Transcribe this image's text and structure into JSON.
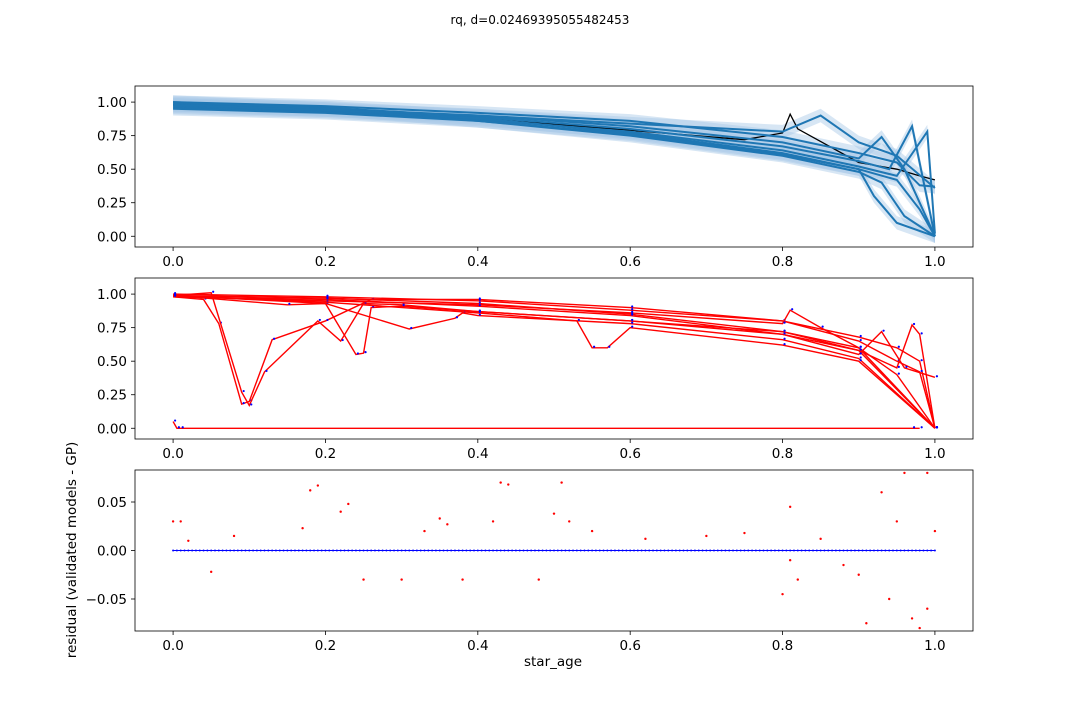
{
  "figure": {
    "suptitle": "rq, d=0.02469395055482453"
  },
  "chart_data": [
    {
      "type": "line",
      "panel": "top",
      "description_of_marks": "validation models (black) with GP predictions (blue) and shaded uncertainty bands",
      "xlim": [
        -0.05,
        1.05
      ],
      "ylim": [
        -0.08,
        1.12
      ],
      "xticks": [
        0.0,
        0.2,
        0.4,
        0.6,
        0.8,
        1.0
      ],
      "xtick_labels": [
        "0.0",
        "0.2",
        "0.4",
        "0.6",
        "0.8",
        "1.0"
      ],
      "yticks": [
        0.0,
        0.25,
        0.5,
        0.75,
        1.0
      ],
      "ytick_labels": [
        "0.00",
        "0.25",
        "0.50",
        "0.75",
        "1.00"
      ],
      "colors": {
        "gp": "#1f77b4",
        "band": "#a6c8e6",
        "truth": "#000000"
      },
      "series": [
        {
          "kind": "truth",
          "x": [
            0.0,
            0.2,
            0.4,
            0.6,
            0.75,
            0.8,
            0.81,
            0.82,
            0.9,
            0.95,
            0.98,
            1.0
          ],
          "y": [
            0.98,
            0.94,
            0.88,
            0.79,
            0.72,
            0.77,
            0.91,
            0.8,
            0.55,
            0.5,
            0.45,
            0.42
          ]
        },
        {
          "kind": "gp",
          "x": [
            0.0,
            0.2,
            0.4,
            0.6,
            0.8,
            0.9,
            0.95,
            0.98,
            1.0
          ],
          "y": [
            1.0,
            0.97,
            0.92,
            0.86,
            0.74,
            0.62,
            0.55,
            0.38,
            0.37
          ]
        },
        {
          "kind": "gp",
          "x": [
            0.0,
            0.2,
            0.4,
            0.6,
            0.8,
            0.9,
            0.93,
            0.96,
            0.98,
            1.0
          ],
          "y": [
            0.98,
            0.95,
            0.9,
            0.82,
            0.7,
            0.58,
            0.74,
            0.5,
            0.25,
            0.0
          ]
        },
        {
          "kind": "gp",
          "x": [
            0.0,
            0.2,
            0.4,
            0.6,
            0.8,
            0.9,
            0.94,
            0.97,
            1.0
          ],
          "y": [
            0.99,
            0.96,
            0.89,
            0.8,
            0.67,
            0.56,
            0.5,
            0.82,
            0.0
          ]
        },
        {
          "kind": "gp",
          "x": [
            0.0,
            0.2,
            0.4,
            0.6,
            0.8,
            0.9,
            0.95,
            0.99,
            1.0
          ],
          "y": [
            0.96,
            0.93,
            0.87,
            0.78,
            0.64,
            0.52,
            0.45,
            0.78,
            0.02
          ]
        },
        {
          "kind": "gp",
          "x": [
            0.0,
            0.2,
            0.4,
            0.6,
            0.8,
            0.9,
            0.95,
            0.98,
            1.0
          ],
          "y": [
            0.97,
            0.94,
            0.88,
            0.77,
            0.62,
            0.5,
            0.42,
            0.2,
            0.0
          ]
        },
        {
          "kind": "gp",
          "x": [
            0.0,
            0.2,
            0.4,
            0.6,
            0.8,
            0.9,
            0.93,
            0.96,
            1.0
          ],
          "y": [
            1.0,
            0.95,
            0.86,
            0.75,
            0.6,
            0.48,
            0.4,
            0.15,
            0.0
          ]
        },
        {
          "kind": "gp",
          "x": [
            0.0,
            0.2,
            0.4,
            0.6,
            0.8,
            0.9,
            0.92,
            0.95,
            1.0
          ],
          "y": [
            0.95,
            0.92,
            0.86,
            0.76,
            0.61,
            0.5,
            0.3,
            0.1,
            0.0
          ]
        },
        {
          "kind": "gp",
          "x": [
            0.0,
            0.2,
            0.4,
            0.6,
            0.8,
            0.85,
            0.9,
            0.95,
            1.0
          ],
          "y": [
            0.98,
            0.94,
            0.9,
            0.84,
            0.78,
            0.9,
            0.7,
            0.6,
            0.36
          ]
        }
      ]
    },
    {
      "type": "line",
      "panel": "middle",
      "description_of_marks": "validated model tracks (red lines) with GP samples (blue points)",
      "xlim": [
        -0.05,
        1.05
      ],
      "ylim": [
        -0.08,
        1.12
      ],
      "xticks": [
        0.0,
        0.2,
        0.4,
        0.6,
        0.8,
        1.0
      ],
      "xtick_labels": [
        "0.0",
        "0.2",
        "0.4",
        "0.6",
        "0.8",
        "1.0"
      ],
      "yticks": [
        0.0,
        0.25,
        0.5,
        0.75,
        1.0
      ],
      "ytick_labels": [
        "0.00",
        "0.25",
        "0.50",
        "0.75",
        "1.00"
      ],
      "colors": {
        "model": "#ff0000",
        "points": "#0000ff"
      },
      "series": [
        {
          "kind": "model",
          "x": [
            0.0,
            0.005,
            0.01,
            0.97,
            0.98
          ],
          "y": [
            0.05,
            0.0,
            0.0,
            0.0,
            0.0
          ]
        },
        {
          "kind": "model",
          "x": [
            0.0,
            0.04,
            0.06,
            0.09,
            0.1,
            0.13,
            0.2,
            0.26,
            0.4,
            0.6,
            0.8,
            0.9,
            0.95,
            0.98,
            1.0
          ],
          "y": [
            0.98,
            0.96,
            0.78,
            0.18,
            0.2,
            0.66,
            0.8,
            0.96,
            0.96,
            0.9,
            0.8,
            0.68,
            0.6,
            0.5,
            0.0
          ]
        },
        {
          "kind": "model",
          "x": [
            0.0,
            0.05,
            0.09,
            0.1,
            0.12,
            0.19,
            0.22,
            0.25,
            0.3,
            0.4,
            0.6,
            0.8,
            0.9,
            1.0
          ],
          "y": [
            0.99,
            1.01,
            0.27,
            0.17,
            0.42,
            0.8,
            0.65,
            0.93,
            0.92,
            0.87,
            0.8,
            0.72,
            0.6,
            0.0
          ]
        },
        {
          "kind": "model",
          "x": [
            0.0,
            0.15,
            0.2,
            0.24,
            0.25,
            0.26,
            0.3,
            0.4,
            0.6,
            0.8,
            0.9,
            1.0
          ],
          "y": [
            0.99,
            0.92,
            0.93,
            0.55,
            0.56,
            0.9,
            0.91,
            0.87,
            0.8,
            0.7,
            0.58,
            0.0
          ]
        },
        {
          "kind": "model",
          "x": [
            0.0,
            0.2,
            0.31,
            0.37,
            0.38,
            0.4,
            0.6,
            0.8,
            0.9,
            1.0
          ],
          "y": [
            0.99,
            0.93,
            0.74,
            0.82,
            0.86,
            0.84,
            0.78,
            0.66,
            0.52,
            0.0
          ]
        },
        {
          "kind": "model",
          "x": [
            0.0,
            0.2,
            0.4,
            0.53,
            0.55,
            0.57,
            0.6,
            0.8,
            0.9,
            1.0
          ],
          "y": [
            0.99,
            0.94,
            0.86,
            0.8,
            0.6,
            0.6,
            0.75,
            0.62,
            0.5,
            0.0
          ]
        },
        {
          "kind": "model",
          "x": [
            0.0,
            0.2,
            0.4,
            0.6,
            0.8,
            0.9,
            0.95,
            0.98,
            1.0
          ],
          "y": [
            1.0,
            0.98,
            0.95,
            0.88,
            0.8,
            0.65,
            0.5,
            0.42,
            0.0
          ]
        },
        {
          "kind": "model",
          "x": [
            0.0,
            0.2,
            0.4,
            0.6,
            0.8,
            0.81,
            0.85,
            0.9,
            0.95,
            1.0
          ],
          "y": [
            0.98,
            0.95,
            0.92,
            0.86,
            0.78,
            0.88,
            0.75,
            0.6,
            0.4,
            0.0
          ]
        },
        {
          "kind": "model",
          "x": [
            0.0,
            0.2,
            0.4,
            0.6,
            0.8,
            0.9,
            0.95,
            0.97,
            0.98,
            1.0
          ],
          "y": [
            0.99,
            0.97,
            0.93,
            0.85,
            0.72,
            0.58,
            0.45,
            0.77,
            0.7,
            0.0
          ]
        },
        {
          "kind": "model",
          "x": [
            0.0,
            0.2,
            0.4,
            0.6,
            0.8,
            0.9,
            0.93,
            0.96,
            1.0
          ],
          "y": [
            0.98,
            0.96,
            0.91,
            0.84,
            0.7,
            0.55,
            0.72,
            0.45,
            0.38
          ]
        }
      ]
    },
    {
      "type": "scatter",
      "panel": "bottom",
      "description_of_marks": "residuals of validated models minus GP (red points, blue points near zero)",
      "xlabel": "star_age",
      "ylabel": "residual (validated models - GP)",
      "xlim": [
        -0.05,
        1.05
      ],
      "ylim": [
        -0.083,
        0.083
      ],
      "xticks": [
        0.0,
        0.2,
        0.4,
        0.6,
        0.8,
        1.0
      ],
      "xtick_labels": [
        "0.0",
        "0.2",
        "0.4",
        "0.6",
        "0.8",
        "1.0"
      ],
      "yticks": [
        -0.05,
        0.0,
        0.05
      ],
      "ytick_labels": [
        "−0.05",
        "0.00",
        "0.05"
      ],
      "colors": {
        "red": "#ff0000",
        "blue": "#0000ff"
      },
      "series": [
        {
          "name": "",
          "color": "red",
          "points": [
            [
              0.0,
              0.03
            ],
            [
              0.01,
              0.03
            ],
            [
              0.02,
              0.01
            ],
            [
              0.05,
              -0.022
            ],
            [
              0.08,
              0.015
            ],
            [
              0.17,
              0.023
            ],
            [
              0.18,
              0.062
            ],
            [
              0.19,
              0.067
            ],
            [
              0.22,
              0.04
            ],
            [
              0.23,
              0.048
            ],
            [
              0.25,
              -0.03
            ],
            [
              0.3,
              -0.03
            ],
            [
              0.33,
              0.02
            ],
            [
              0.35,
              0.033
            ],
            [
              0.36,
              0.027
            ],
            [
              0.38,
              -0.03
            ],
            [
              0.42,
              0.03
            ],
            [
              0.43,
              0.07
            ],
            [
              0.44,
              0.068
            ],
            [
              0.48,
              -0.03
            ],
            [
              0.5,
              0.038
            ],
            [
              0.51,
              0.07
            ],
            [
              0.52,
              0.03
            ],
            [
              0.55,
              0.02
            ],
            [
              0.62,
              0.012
            ],
            [
              0.7,
              0.015
            ],
            [
              0.75,
              0.018
            ],
            [
              0.8,
              -0.045
            ],
            [
              0.81,
              0.045
            ],
            [
              0.81,
              -0.01
            ],
            [
              0.82,
              -0.03
            ],
            [
              0.85,
              0.012
            ],
            [
              0.88,
              -0.015
            ],
            [
              0.9,
              -0.025
            ],
            [
              0.91,
              -0.075
            ],
            [
              0.93,
              0.06
            ],
            [
              0.94,
              -0.05
            ],
            [
              0.95,
              0.03
            ],
            [
              0.96,
              0.08
            ],
            [
              0.97,
              -0.07
            ],
            [
              0.98,
              0.085
            ],
            [
              0.98,
              -0.08
            ],
            [
              0.99,
              0.08
            ],
            [
              0.99,
              -0.06
            ],
            [
              1.0,
              0.02
            ]
          ]
        }
      ]
    }
  ]
}
